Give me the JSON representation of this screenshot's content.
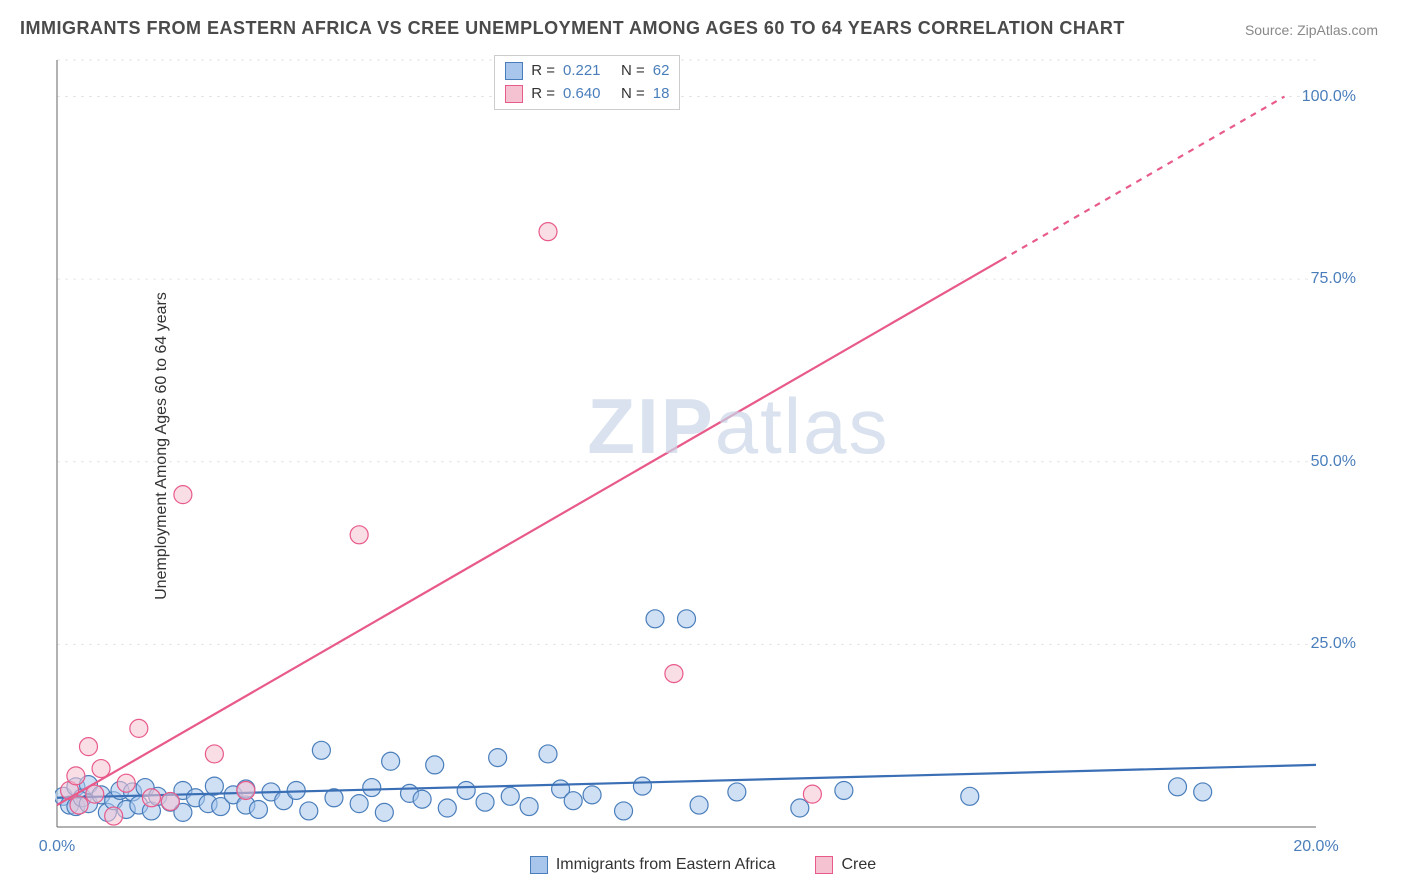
{
  "title": "IMMIGRANTS FROM EASTERN AFRICA VS CREE UNEMPLOYMENT AMONG AGES 60 TO 64 YEARS CORRELATION CHART",
  "source_label": "Source: ZipAtlas.com",
  "ylabel": "Unemployment Among Ages 60 to 64 years",
  "watermark_bold": "ZIP",
  "watermark_rest": "atlas",
  "chart": {
    "type": "scatter-with-regression",
    "xlim": [
      0,
      20
    ],
    "ylim": [
      0,
      105
    ],
    "xticks": [
      {
        "v": 0,
        "label": "0.0%"
      },
      {
        "v": 20,
        "label": "20.0%"
      }
    ],
    "yticks": [
      {
        "v": 25,
        "label": "25.0%"
      },
      {
        "v": 50,
        "label": "50.0%"
      },
      {
        "v": 75,
        "label": "75.0%"
      },
      {
        "v": 100,
        "label": "100.0%"
      }
    ],
    "grid_color": "#e6e6e6",
    "grid_dash": "3,5",
    "axis_color": "#666666",
    "background_color": "#ffffff",
    "marker_radius": 9,
    "marker_opacity": 0.55,
    "line_width": 2.2,
    "series": [
      {
        "name": "Immigrants from Eastern Africa",
        "color_fill": "#a8c6ec",
        "color_stroke": "#4a7ebb",
        "line_color": "#3b6fb5",
        "R": "0.221",
        "N": "62",
        "trend": {
          "x1": 0,
          "y1": 4.0,
          "x2": 20,
          "y2": 8.5,
          "dashed_from_x": null
        },
        "points": [
          [
            0.1,
            4.2
          ],
          [
            0.2,
            3.0
          ],
          [
            0.3,
            5.5
          ],
          [
            0.3,
            2.8
          ],
          [
            0.4,
            4.0
          ],
          [
            0.5,
            3.2
          ],
          [
            0.5,
            5.8
          ],
          [
            0.7,
            4.4
          ],
          [
            0.8,
            2.0
          ],
          [
            0.9,
            3.6
          ],
          [
            1.0,
            5.0
          ],
          [
            1.1,
            2.4
          ],
          [
            1.2,
            4.8
          ],
          [
            1.3,
            3.0
          ],
          [
            1.4,
            5.4
          ],
          [
            1.5,
            2.2
          ],
          [
            1.6,
            4.2
          ],
          [
            1.8,
            3.4
          ],
          [
            2.0,
            5.0
          ],
          [
            2.0,
            2.0
          ],
          [
            2.2,
            4.0
          ],
          [
            2.4,
            3.2
          ],
          [
            2.5,
            5.6
          ],
          [
            2.6,
            2.8
          ],
          [
            2.8,
            4.4
          ],
          [
            3.0,
            3.0
          ],
          [
            3.0,
            5.2
          ],
          [
            3.2,
            2.4
          ],
          [
            3.4,
            4.8
          ],
          [
            3.6,
            3.6
          ],
          [
            3.8,
            5.0
          ],
          [
            4.0,
            2.2
          ],
          [
            4.2,
            10.5
          ],
          [
            4.4,
            4.0
          ],
          [
            4.8,
            3.2
          ],
          [
            5.0,
            5.4
          ],
          [
            5.2,
            2.0
          ],
          [
            5.3,
            9.0
          ],
          [
            5.6,
            4.6
          ],
          [
            5.8,
            3.8
          ],
          [
            6.0,
            8.5
          ],
          [
            6.2,
            2.6
          ],
          [
            6.5,
            5.0
          ],
          [
            6.8,
            3.4
          ],
          [
            7.0,
            9.5
          ],
          [
            7.2,
            4.2
          ],
          [
            7.5,
            2.8
          ],
          [
            7.8,
            10.0
          ],
          [
            8.0,
            5.2
          ],
          [
            8.2,
            3.6
          ],
          [
            8.5,
            4.4
          ],
          [
            9.0,
            2.2
          ],
          [
            9.3,
            5.6
          ],
          [
            9.5,
            28.5
          ],
          [
            10.0,
            28.5
          ],
          [
            10.2,
            3.0
          ],
          [
            10.8,
            4.8
          ],
          [
            11.8,
            2.6
          ],
          [
            12.5,
            5.0
          ],
          [
            14.5,
            4.2
          ],
          [
            17.8,
            5.5
          ],
          [
            18.2,
            4.8
          ]
        ]
      },
      {
        "name": "Cree",
        "color_fill": "#f5c2d1",
        "color_stroke": "#e85a8a",
        "line_color": "#e85a8a",
        "R": "0.640",
        "N": "18",
        "trend": {
          "x1": 0,
          "y1": 3.0,
          "x2": 19.5,
          "y2": 100.0,
          "dashed_from_x": 15.0
        },
        "points": [
          [
            0.2,
            5.0
          ],
          [
            0.3,
            7.0
          ],
          [
            0.35,
            3.0
          ],
          [
            0.5,
            11.0
          ],
          [
            0.6,
            4.5
          ],
          [
            0.7,
            8.0
          ],
          [
            0.9,
            1.5
          ],
          [
            1.1,
            6.0
          ],
          [
            1.3,
            13.5
          ],
          [
            1.5,
            4.0
          ],
          [
            1.8,
            3.5
          ],
          [
            2.0,
            45.5
          ],
          [
            2.5,
            10.0
          ],
          [
            3.0,
            5.0
          ],
          [
            4.8,
            40.0
          ],
          [
            7.8,
            81.5
          ],
          [
            9.8,
            21.0
          ],
          [
            12.0,
            4.5
          ]
        ]
      }
    ]
  },
  "legend_top": {
    "rows": [
      {
        "swatch_fill": "#a8c6ec",
        "swatch_stroke": "#4a7ebb",
        "label_r": "R =",
        "val_r": "0.221",
        "label_n": "N =",
        "val_n": "62"
      },
      {
        "swatch_fill": "#f5c2d1",
        "swatch_stroke": "#e85a8a",
        "label_r": "R =",
        "val_r": "0.640",
        "label_n": "N =",
        "val_n": "18"
      }
    ],
    "text_color": "#333333",
    "value_color": "#4a7ebb"
  },
  "legend_bottom": {
    "items": [
      {
        "swatch_fill": "#a8c6ec",
        "swatch_stroke": "#4a7ebb",
        "label": "Immigrants from Eastern Africa"
      },
      {
        "swatch_fill": "#f5c2d1",
        "swatch_stroke": "#e85a8a",
        "label": "Cree"
      }
    ]
  }
}
